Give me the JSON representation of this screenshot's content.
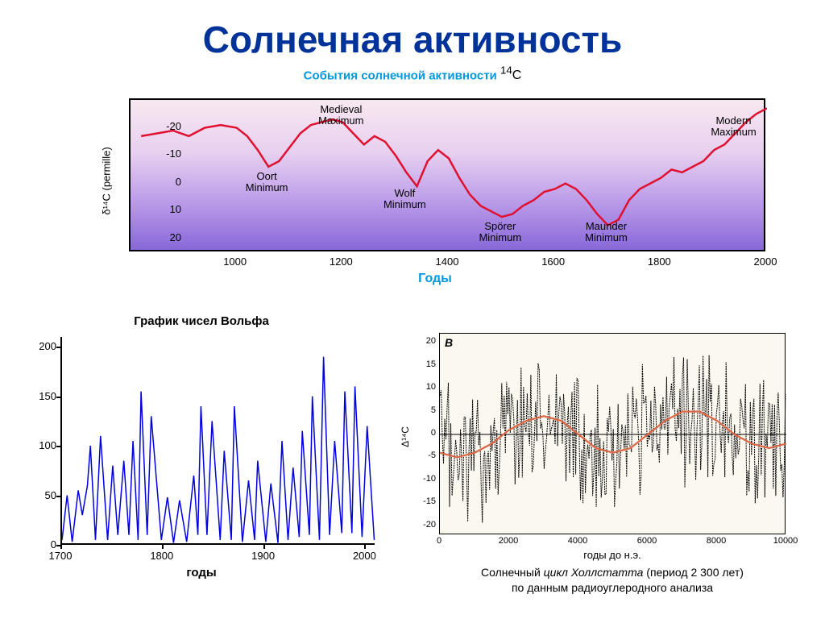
{
  "title": "Солнечная активность",
  "subtitle_text": "События солнечной активности",
  "subtitle_sup": "14",
  "subtitle_el": "С",
  "chart1": {
    "type": "line",
    "ylabel": "δ¹⁴C (permille)",
    "xlabel": "Годы",
    "xlim": [
      800,
      2000
    ],
    "ylim_display": [
      -30,
      25
    ],
    "yticks": [
      -20,
      -10,
      0,
      10,
      20
    ],
    "xticks": [
      1000,
      1200,
      1400,
      1600,
      1800,
      2000
    ],
    "line_color": "#e01030",
    "line_width": 2.5,
    "bg_gradient_top": "#f8e8f0",
    "bg_gradient_bottom": "#8868d8",
    "border_color": "#000000",
    "annotations": [
      {
        "label1": "Oort",
        "label2": "Minimum",
        "x": 1060,
        "y_text": -4
      },
      {
        "label1": "Medieval",
        "label2": "Maximum",
        "x": 1200,
        "y_text": -28
      },
      {
        "label1": "Wolf",
        "label2": "Minimum",
        "x": 1320,
        "y_text": 2
      },
      {
        "label1": "Spörer",
        "label2": "Minimum",
        "x": 1500,
        "y_text": 14
      },
      {
        "label1": "Maunder",
        "label2": "Minimum",
        "x": 1700,
        "y_text": 14
      },
      {
        "label1": "Modern",
        "label2": "Maximum",
        "x": 1940,
        "y_text": -24
      }
    ],
    "data": [
      [
        820,
        -17
      ],
      [
        850,
        -18
      ],
      [
        880,
        -19
      ],
      [
        910,
        -17
      ],
      [
        940,
        -20
      ],
      [
        970,
        -21
      ],
      [
        1000,
        -20
      ],
      [
        1020,
        -17
      ],
      [
        1040,
        -12
      ],
      [
        1060,
        -6
      ],
      [
        1080,
        -8
      ],
      [
        1100,
        -13
      ],
      [
        1120,
        -18
      ],
      [
        1140,
        -21
      ],
      [
        1160,
        -22
      ],
      [
        1180,
        -23
      ],
      [
        1200,
        -22
      ],
      [
        1220,
        -18
      ],
      [
        1240,
        -14
      ],
      [
        1260,
        -17
      ],
      [
        1280,
        -15
      ],
      [
        1300,
        -10
      ],
      [
        1320,
        -4
      ],
      [
        1340,
        1
      ],
      [
        1360,
        -8
      ],
      [
        1380,
        -12
      ],
      [
        1400,
        -9
      ],
      [
        1420,
        -2
      ],
      [
        1440,
        4
      ],
      [
        1460,
        8
      ],
      [
        1480,
        10
      ],
      [
        1500,
        12
      ],
      [
        1520,
        11
      ],
      [
        1540,
        8
      ],
      [
        1560,
        6
      ],
      [
        1580,
        3
      ],
      [
        1600,
        2
      ],
      [
        1620,
        0
      ],
      [
        1640,
        2
      ],
      [
        1660,
        6
      ],
      [
        1680,
        11
      ],
      [
        1700,
        15
      ],
      [
        1720,
        13
      ],
      [
        1740,
        6
      ],
      [
        1760,
        2
      ],
      [
        1780,
        0
      ],
      [
        1800,
        -2
      ],
      [
        1820,
        -5
      ],
      [
        1840,
        -4
      ],
      [
        1860,
        -6
      ],
      [
        1880,
        -8
      ],
      [
        1900,
        -12
      ],
      [
        1920,
        -14
      ],
      [
        1940,
        -18
      ],
      [
        1960,
        -22
      ],
      [
        1980,
        -25
      ],
      [
        2000,
        -27
      ]
    ]
  },
  "wolf": {
    "type": "line",
    "title": "График чисел Вольфа",
    "xlabel": "годы",
    "ylim": [
      0,
      210
    ],
    "yticks": [
      0,
      50,
      100,
      150,
      200
    ],
    "xlim": [
      1700,
      2010
    ],
    "xticks": [
      1700,
      1800,
      1900,
      2000
    ],
    "line_color": "#0000e0",
    "line_width": 1.5,
    "data": [
      [
        1700,
        5
      ],
      [
        1705,
        50
      ],
      [
        1710,
        3
      ],
      [
        1716,
        55
      ],
      [
        1720,
        30
      ],
      [
        1725,
        60
      ],
      [
        1728,
        100
      ],
      [
        1733,
        5
      ],
      [
        1738,
        110
      ],
      [
        1745,
        5
      ],
      [
        1750,
        80
      ],
      [
        1755,
        10
      ],
      [
        1761,
        85
      ],
      [
        1766,
        10
      ],
      [
        1770,
        105
      ],
      [
        1775,
        5
      ],
      [
        1778,
        155
      ],
      [
        1784,
        10
      ],
      [
        1788,
        130
      ],
      [
        1798,
        5
      ],
      [
        1804,
        48
      ],
      [
        1810,
        2
      ],
      [
        1816,
        45
      ],
      [
        1823,
        3
      ],
      [
        1830,
        70
      ],
      [
        1834,
        10
      ],
      [
        1837,
        140
      ],
      [
        1843,
        10
      ],
      [
        1848,
        125
      ],
      [
        1856,
        5
      ],
      [
        1860,
        95
      ],
      [
        1867,
        5
      ],
      [
        1870,
        140
      ],
      [
        1878,
        3
      ],
      [
        1884,
        65
      ],
      [
        1890,
        5
      ],
      [
        1893,
        85
      ],
      [
        1901,
        3
      ],
      [
        1906,
        62
      ],
      [
        1913,
        2
      ],
      [
        1917,
        105
      ],
      [
        1923,
        5
      ],
      [
        1928,
        78
      ],
      [
        1934,
        8
      ],
      [
        1937,
        115
      ],
      [
        1944,
        10
      ],
      [
        1947,
        150
      ],
      [
        1954,
        5
      ],
      [
        1958,
        190
      ],
      [
        1964,
        10
      ],
      [
        1969,
        105
      ],
      [
        1976,
        12
      ],
      [
        1979,
        155
      ],
      [
        1986,
        12
      ],
      [
        1989,
        160
      ],
      [
        1996,
        8
      ],
      [
        2001,
        120
      ],
      [
        2008,
        5
      ]
    ]
  },
  "hall": {
    "type": "line",
    "panel_label": "B",
    "ylabel": "Δ¹⁴C",
    "xlabel": "годы до н.э.",
    "caption_1_a": "Солнечный ",
    "caption_1_b": "цикл Холлстатта",
    "caption_1_c": "    (период  2 300 лет)",
    "caption_2": "по данным радиоуглеродного анализа",
    "ylim": [
      -22,
      22
    ],
    "yticks": [
      -20,
      -15,
      -10,
      -5,
      0,
      5,
      10,
      15,
      20
    ],
    "xlim": [
      0,
      10000
    ],
    "xticks": [
      0,
      2000,
      4000,
      6000,
      8000,
      10000
    ],
    "noise_color": "#000000",
    "wave_color": "#dd6644",
    "bg_color": "#fbf8f0",
    "wave": [
      [
        0,
        -4
      ],
      [
        500,
        -5
      ],
      [
        1000,
        -4
      ],
      [
        1500,
        -2
      ],
      [
        2000,
        1
      ],
      [
        2500,
        3
      ],
      [
        3000,
        4
      ],
      [
        3500,
        3
      ],
      [
        4000,
        0
      ],
      [
        4500,
        -3
      ],
      [
        5000,
        -4
      ],
      [
        5500,
        -3
      ],
      [
        6000,
        0
      ],
      [
        6500,
        3
      ],
      [
        7000,
        5
      ],
      [
        7500,
        5
      ],
      [
        8000,
        3
      ],
      [
        8500,
        0
      ],
      [
        9000,
        -2
      ],
      [
        9500,
        -3
      ],
      [
        10000,
        -2
      ]
    ]
  }
}
